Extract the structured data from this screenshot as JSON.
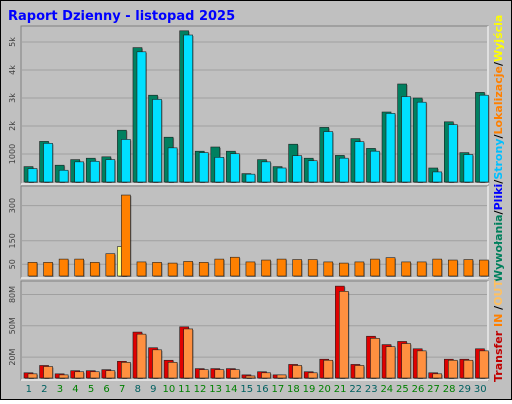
{
  "title": "Raport Dzienny -  listopad 2025",
  "chart_data": {
    "type": "bar",
    "categories": [
      "1",
      "2",
      "3",
      "4",
      "5",
      "6",
      "7",
      "8",
      "9",
      "10",
      "11",
      "12",
      "13",
      "14",
      "15",
      "16",
      "17",
      "18",
      "19",
      "20",
      "21",
      "22",
      "23",
      "24",
      "25",
      "26",
      "27",
      "28",
      "29",
      "30"
    ],
    "weekend_days": [
      "1",
      "2",
      "8",
      "9",
      "15",
      "16",
      "22",
      "23",
      "29",
      "30"
    ],
    "panels": [
      {
        "name": "wywolania-strony",
        "ylim": [
          0,
          5500
        ],
        "ticks": [
          {
            "value": 1000,
            "label": "1000"
          },
          {
            "value": 2000,
            "label": "2k"
          },
          {
            "value": 3000,
            "label": "3k"
          },
          {
            "value": 4000,
            "label": "4k"
          },
          {
            "value": 5000,
            "label": "5k"
          }
        ],
        "series": [
          {
            "key": "wywolania",
            "values": [
              550,
              1450,
              600,
              800,
              850,
              900,
              1850,
              4800,
              3100,
              1600,
              5400,
              1100,
              1250,
              1100,
              300,
              800,
              550,
              1350,
              850,
              1950,
              950,
              1550,
              1200,
              2500,
              3500,
              3000,
              500,
              2150,
              1050,
              3200
            ]
          },
          {
            "key": "strony",
            "values": [
              480,
              1380,
              420,
              720,
              740,
              800,
              1520,
              4650,
              2950,
              1220,
              5250,
              1050,
              880,
              1010,
              280,
              720,
              500,
              940,
              760,
              1800,
              850,
              1440,
              1100,
              2450,
              3050,
              2850,
              360,
              2050,
              980,
              3100
            ]
          }
        ]
      },
      {
        "name": "pliki-lokalizacje",
        "ylim": [
          0,
          375
        ],
        "ticks": [
          {
            "value": 50,
            "label": "50"
          },
          {
            "value": 150,
            "label": "150"
          },
          {
            "value": 300,
            "label": "300"
          }
        ],
        "series": [
          {
            "key": "pliki",
            "values": [
              0,
              0,
              0,
              0,
              0,
              0,
              125,
              0,
              0,
              0,
              0,
              0,
              0,
              0,
              0,
              0,
              0,
              0,
              0,
              0,
              0,
              0,
              0,
              0,
              0,
              0,
              0,
              0,
              0,
              0
            ]
          },
          {
            "key": "lokalizacje",
            "values": [
              58,
              58,
              72,
              72,
              58,
              95,
              345,
              60,
              58,
              55,
              62,
              58,
              72,
              80,
              60,
              68,
              72,
              70,
              70,
              60,
              55,
              60,
              72,
              78,
              60,
              60,
              72,
              68,
              70,
              68
            ]
          }
        ]
      },
      {
        "name": "transfer",
        "ylim": [
          0,
          91
        ],
        "ticks": [
          {
            "value": 20,
            "label": "20M"
          },
          {
            "value": 50,
            "label": "50M"
          },
          {
            "value": 80,
            "label": "80M"
          }
        ],
        "series": [
          {
            "key": "transfer_in",
            "values": [
              5,
              12,
              4,
              7,
              7,
              8,
              16,
              44,
              29,
              17,
              49,
              9,
              9,
              9,
              3,
              6,
              3,
              13,
              6,
              18,
              88,
              13,
              40,
              32,
              35,
              28,
              5,
              18,
              18,
              28
            ]
          },
          {
            "key": "transfer_out",
            "values": [
              4,
              11,
              3,
              6,
              6,
              7,
              15,
              42,
              27,
              15,
              47,
              8,
              8,
              8,
              2,
              5,
              3,
              12,
              5,
              17,
              83,
              12,
              38,
              30,
              33,
              26,
              4,
              17,
              17,
              26
            ]
          }
        ]
      }
    ]
  },
  "legend_right": {
    "line1": [
      {
        "text": "Wywołania",
        "color": "#00805c"
      },
      {
        "text": "/",
        "color": "#000000"
      },
      {
        "text": "Pliki",
        "color": "#0000ff"
      },
      {
        "text": "/",
        "color": "#000000"
      },
      {
        "text": "Strony",
        "color": "#00c0ff"
      },
      {
        "text": "/",
        "color": "#000000"
      },
      {
        "text": "Lokalizacje",
        "color": "#ff8000"
      },
      {
        "text": "/",
        "color": "#000000"
      },
      {
        "text": "Wyjścia",
        "color": "#ffff00"
      }
    ],
    "line2": [
      {
        "text": "Transfer",
        "color": "#c00000"
      },
      {
        "text": " IN ",
        "color": "#ff8000"
      },
      {
        "text": "/",
        "color": "#000000"
      },
      {
        "text": "OUT",
        "color": "#ffc060"
      }
    ]
  },
  "colors": {
    "background": "#c0c0c0",
    "panel": "#c0c0c0",
    "title": "#0000ff",
    "weekday_label": "#008000",
    "weekend_label": "#006060",
    "wywolania": "#008060",
    "strony": "#00e0ff",
    "pliki": "#ffff80",
    "lokalizacje": "#ff8000",
    "transfer_in": "#e00000",
    "transfer_out": "#ff9040"
  }
}
